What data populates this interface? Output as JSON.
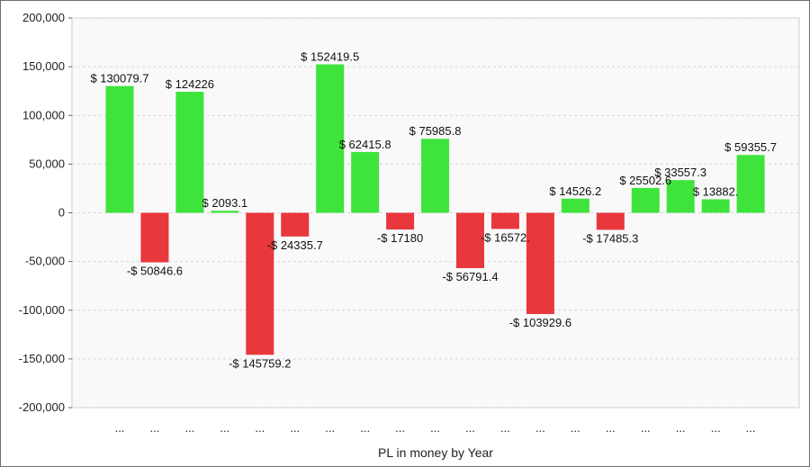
{
  "chart_data": {
    "type": "bar",
    "title": "",
    "xlabel": "PL in money by Year",
    "ylabel": "",
    "ylim": [
      -200000,
      200000
    ],
    "yticks": [
      200000,
      150000,
      100000,
      50000,
      0,
      -50000,
      -100000,
      -150000,
      -200000
    ],
    "ytick_labels": [
      "200,000",
      "150,000",
      "100,000",
      "50,000",
      "0",
      "-50,000",
      "-100,000",
      "-150,000",
      "-200,000"
    ],
    "categories": [
      "...",
      "...",
      "...",
      "...",
      "...",
      "...",
      "...",
      "...",
      "...",
      "...",
      "...",
      "...",
      "...",
      "...",
      "...",
      "...",
      "...",
      "...",
      "..."
    ],
    "values": [
      130079.7,
      -50846.6,
      124226,
      2093.1,
      -145759.2,
      -24335.7,
      152419.5,
      62415.8,
      -17180,
      75985.8,
      -56791.4,
      -16572,
      -103929.6,
      14526.2,
      -17485.3,
      25502.6,
      33557.3,
      13882,
      59355.7
    ],
    "data_labels": [
      "$ 130079.7",
      "-$ 50846.6",
      "$ 124226",
      "$ 2093.1",
      "-$ 145759.2",
      "-$ 24335.7",
      "$ 152419.5",
      "$ 62415.8",
      "-$ 17180",
      "$ 75985.8",
      "-$ 56791.4",
      "-$ 16572.",
      "-$ 103929.6",
      "$ 14526.2",
      "-$ 17485.3",
      "$ 25502.6",
      "$ 33557.3",
      "$ 13882.",
      "$ 59355.7"
    ],
    "colors": {
      "positive": "#3ee43c",
      "negative": "#e8383d"
    },
    "grid": true,
    "legend": "none"
  }
}
